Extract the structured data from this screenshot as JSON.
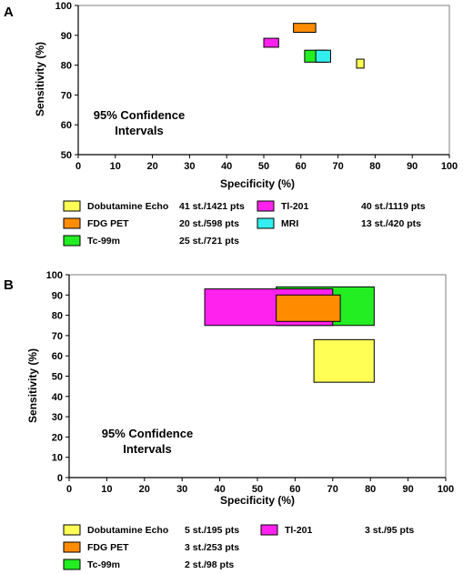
{
  "chart_data": [
    {
      "panel": "A",
      "type": "box",
      "xlabel": "Specificity (%)",
      "ylabel": "Sensitivity (%)",
      "xlim": [
        0,
        100
      ],
      "ylim": [
        50,
        100
      ],
      "x_ticks": [
        "0",
        "10",
        "20",
        "30",
        "40",
        "50",
        "60",
        "70",
        "80",
        "90",
        "100"
      ],
      "y_ticks": [
        "50",
        "60",
        "70",
        "80",
        "90",
        "100"
      ],
      "grid": false,
      "annotation": [
        "95% Confidence",
        "Intervals"
      ],
      "series": [
        {
          "name": "Dobutamine Echo",
          "studies": "41 st./1421 pts",
          "color": "#ffff55",
          "x": [
            75,
            77
          ],
          "y": [
            79,
            82
          ]
        },
        {
          "name": "Tl-201",
          "studies": "40 st./1119 pts",
          "color": "#ff22ee",
          "x": [
            50,
            54
          ],
          "y": [
            86,
            89
          ]
        },
        {
          "name": "FDG PET",
          "studies": "20 st./598 pts",
          "color": "#ff8c00",
          "x": [
            58,
            64
          ],
          "y": [
            91,
            94
          ]
        },
        {
          "name": "MRI",
          "studies": "13 st./420 pts",
          "color": "#33eeee",
          "x": [
            64,
            68
          ],
          "y": [
            81,
            85
          ]
        },
        {
          "name": "Tc-99m",
          "studies": "25 st./721 pts",
          "color": "#22ee22",
          "x": [
            61,
            67
          ],
          "y": [
            81,
            85
          ]
        }
      ]
    },
    {
      "panel": "B",
      "type": "box",
      "xlabel": "Specificity (%)",
      "ylabel": "Sensitivity (%)",
      "xlim": [
        0,
        100
      ],
      "ylim": [
        0,
        100
      ],
      "x_ticks": [
        "0",
        "10",
        "20",
        "30",
        "40",
        "50",
        "60",
        "70",
        "80",
        "90",
        "100"
      ],
      "y_ticks": [
        "0",
        "10",
        "20",
        "30",
        "40",
        "50",
        "60",
        "70",
        "80",
        "90",
        "100"
      ],
      "grid": false,
      "annotation": [
        "95% Confidence",
        "Intervals"
      ],
      "series": [
        {
          "name": "Dobutamine Echo",
          "studies": "5 st./195 pts",
          "color": "#ffff55",
          "x": [
            65,
            81
          ],
          "y": [
            47,
            68
          ]
        },
        {
          "name": "Tl-201",
          "studies": "3 st./95 pts",
          "color": "#ff22ee",
          "x": [
            36,
            70
          ],
          "y": [
            75,
            93
          ]
        },
        {
          "name": "FDG PET",
          "studies": "3 st./253 pts",
          "color": "#ff8c00",
          "x": [
            55,
            72
          ],
          "y": [
            77,
            90
          ]
        },
        {
          "name": "Tc-99m",
          "studies": "2 st./98 pts",
          "color": "#22ee22",
          "x": [
            55,
            81
          ],
          "y": [
            75,
            94
          ]
        }
      ]
    }
  ]
}
